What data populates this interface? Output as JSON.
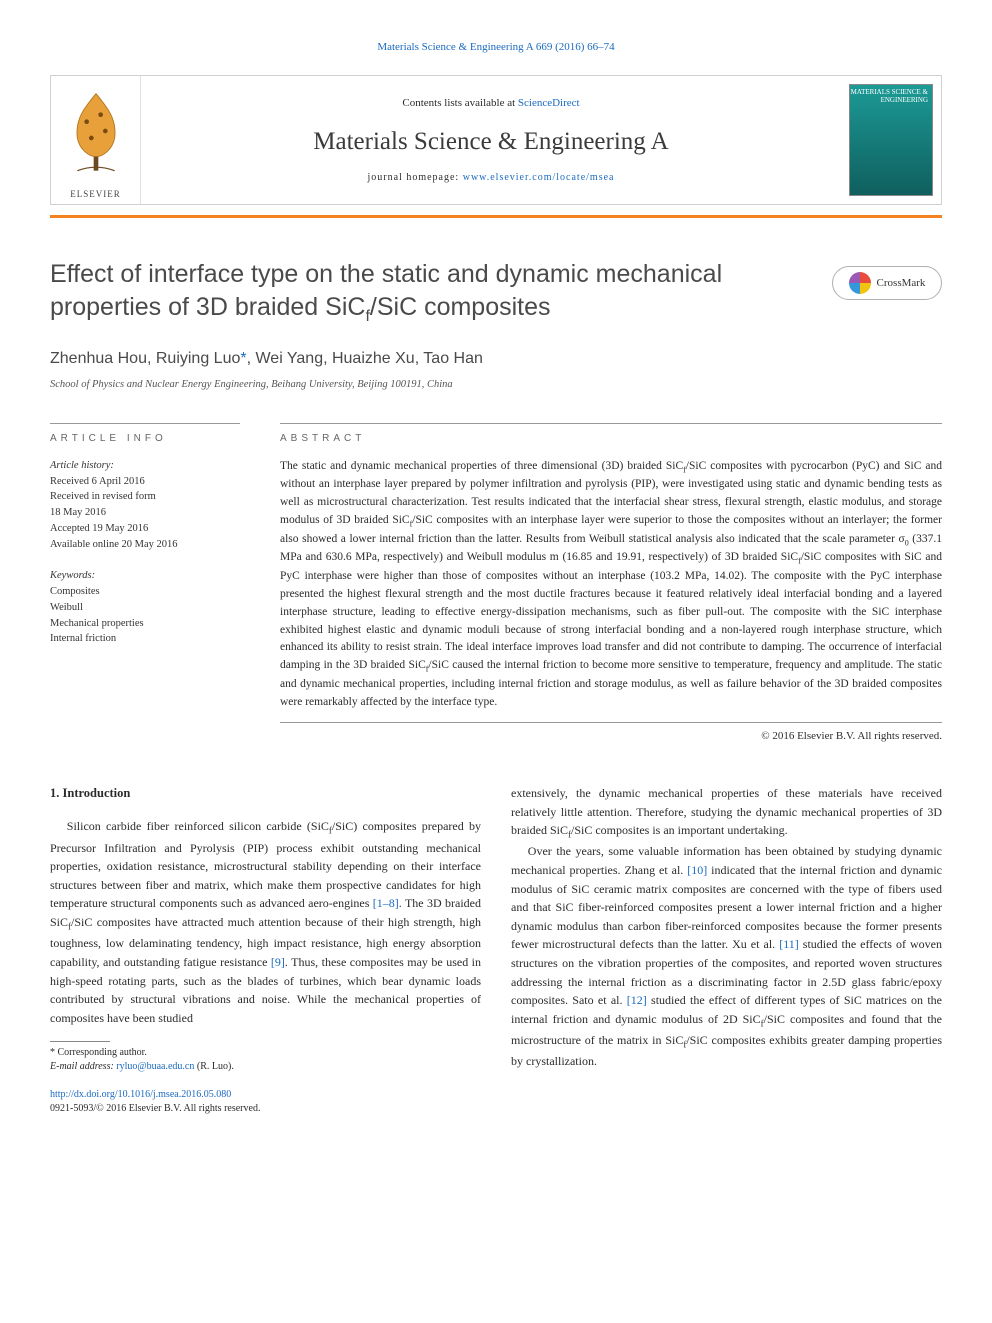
{
  "colors": {
    "link": "#1a6abf",
    "accent_bar": "#f58220",
    "text": "#2b2b2b",
    "muted": "#4a4a4a",
    "border": "#999999"
  },
  "header": {
    "top_link": "Materials Science & Engineering A 669 (2016) 66–74",
    "contents_prefix": "Contents lists available at ",
    "contents_link": "ScienceDirect",
    "journal_name": "Materials Science & Engineering A",
    "homepage_prefix": "journal homepage: ",
    "homepage_link": "www.elsevier.com/locate/msea",
    "publisher_label": "ELSEVIER",
    "cover_text": "MATERIALS SCIENCE & ENGINEERING"
  },
  "crossmark_label": "CrossMark",
  "title_line1": "Effect of interface type on the static and dynamic mechanical",
  "title_line2_pre": "properties of 3D braided SiC",
  "title_line2_sub": "f",
  "title_line2_post": "/SiC composites",
  "authors": {
    "a1": "Zhenhua Hou, ",
    "a2_name": "Ruiying Luo",
    "a2_mark": "*",
    "rest": ", Wei Yang, Huaizhe Xu, Tao Han"
  },
  "affiliation": "School of Physics and Nuclear Energy Engineering, Beihang University, Beijing 100191, China",
  "article_info": {
    "heading": "ARTICLE INFO",
    "history_label": "Article history:",
    "history": [
      "Received 6 April 2016",
      "Received in revised form",
      "18 May 2016",
      "Accepted 19 May 2016",
      "Available online 20 May 2016"
    ],
    "keywords_label": "Keywords:",
    "keywords": [
      "Composites",
      "Weibull",
      "Mechanical properties",
      "Internal friction"
    ]
  },
  "abstract": {
    "heading": "ABSTRACT",
    "paragraphs": [
      "The static and dynamic mechanical properties of three dimensional (3D) braided SiC_f/SiC composites with pycrocarbon (PyC) and SiC and without an interphase layer prepared by polymer infiltration and pyrolysis (PIP), were investigated using static and dynamic bending tests as well as microstructural characterization. Test results indicated that the interfacial shear stress, flexural strength, elastic modulus, and storage modulus of 3D braided SiC_f/SiC composites with an interphase layer were superior to those the composites without an interlayer; the former also showed a lower internal friction than the latter. Results from Weibull statistical analysis also indicated that the scale parameter σ_0 (337.1 MPa and 630.6 MPa, respectively) and Weibull modulus m (16.85 and 19.91, respectively) of 3D braided SiC_f/SiC composites with SiC and PyC interphase were higher than those of composites without an interphase (103.2 MPa, 14.02). The composite with the PyC interphase presented the highest flexural strength and the most ductile fractures because it featured relatively ideal interfacial bonding and a layered interphase structure, leading to effective energy-dissipation mechanisms, such as fiber pull-out. The composite with the SiC interphase exhibited highest elastic and dynamic moduli because of strong interfacial bonding and a non-layered rough interphase structure, which enhanced its ability to resist strain. The ideal interface improves load transfer and did not contribute to damping. The occurrence of interfacial damping in the 3D braided SiC_f/SiC caused the internal friction to become more sensitive to temperature, frequency and amplitude. The static and dynamic mechanical properties, including internal friction and storage modulus, as well as failure behavior of the 3D braided composites were remarkably affected by the interface type."
    ],
    "copyright": "© 2016 Elsevier B.V. All rights reserved."
  },
  "section1": {
    "heading": "1. Introduction",
    "col1_p1_a": "Silicon carbide fiber reinforced silicon carbide (SiC_f/SiC) composites prepared by Precursor Infiltration and Pyrolysis (PIP) process exhibit outstanding mechanical properties, oxidation resistance, microstructural stability depending on their interface structures between fiber and matrix, which make them prospective candidates for high temperature structural components such as advanced aero-engines ",
    "col1_ref1": "[1–8]",
    "col1_p1_b": ". The 3D braided SiC_f/SiC composites have attracted much attention because of their high strength, high toughness, low delaminating tendency, high impact resistance, high energy absorption capability, and outstanding fatigue resistance ",
    "col1_ref2": "[9]",
    "col1_p1_c": ". Thus, these composites may be used in high-speed rotating parts, such as the blades of turbines, which bear dynamic loads contributed by structural vibrations and noise. While the mechanical properties of composites have been studied",
    "col2_p1": "extensively, the dynamic mechanical properties of these materials have received relatively little attention. Therefore, studying the dynamic mechanical properties of 3D braided SiC_f/SiC composites is an important undertaking.",
    "col2_p2_a": "Over the years, some valuable information has been obtained by studying dynamic mechanical properties. Zhang et al. ",
    "col2_ref10": "[10]",
    "col2_p2_b": " indicated that the internal friction and dynamic modulus of SiC ceramic matrix composites are concerned with the type of fibers used and that SiC fiber-reinforced composites present a lower internal friction and a higher dynamic modulus than carbon fiber-reinforced composites because the former presents fewer microstructural defects than the latter. Xu et al. ",
    "col2_ref11": "[11]",
    "col2_p2_c": " studied the effects of woven structures on the vibration properties of the composites, and reported woven structures addressing the internal friction as a discriminating factor in 2.5D glass fabric/epoxy composites. Sato et al. ",
    "col2_ref12": "[12]",
    "col2_p2_d": " studied the effect of different types of SiC matrices on the internal friction and dynamic modulus of 2D SiC_f/SiC composites and found that the microstructure of the matrix in SiC_f/SiC composites exhibits greater damping properties by crystallization."
  },
  "footnote": {
    "corr_label": "* Corresponding author.",
    "email_label": "E-mail address: ",
    "email": "ryluo@buaa.edu.cn",
    "email_suffix": " (R. Luo)."
  },
  "footer": {
    "doi": "http://dx.doi.org/10.1016/j.msea.2016.05.080",
    "issn_line": "0921-5093/© 2016 Elsevier B.V. All rights reserved."
  }
}
